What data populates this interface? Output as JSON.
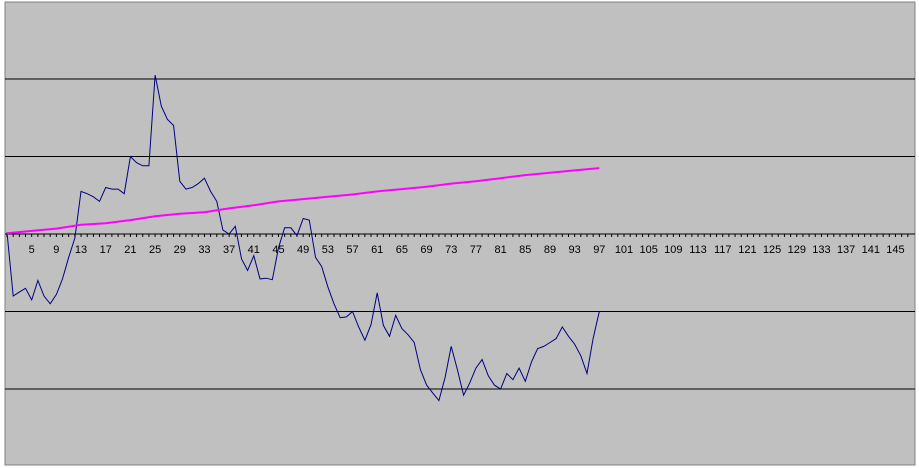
{
  "chart_data": {
    "type": "line",
    "title": "",
    "xlabel": "",
    "ylabel": "",
    "x_tick_labels": [
      "5",
      "9",
      "13",
      "17",
      "21",
      "25",
      "29",
      "33",
      "37",
      "41",
      "45",
      "49",
      "53",
      "57",
      "61",
      "65",
      "69",
      "73",
      "77",
      "81",
      "85",
      "89",
      "93",
      "97",
      "101",
      "105",
      "109",
      "113",
      "117",
      "121",
      "125",
      "129",
      "133",
      "137",
      "141",
      "145"
    ],
    "x_range": [
      1,
      147
    ],
    "y_range": [
      -3,
      3
    ],
    "y_gridlines": [
      -2,
      -1,
      1,
      2
    ],
    "grid": true,
    "background_color": "#C0C0C0",
    "series": [
      {
        "color": "#000080",
        "x": [
          1,
          2,
          3,
          4,
          5,
          6,
          7,
          8,
          9,
          10,
          11,
          12,
          13,
          14,
          15,
          16,
          17,
          18,
          19,
          20,
          21,
          22,
          23,
          24,
          25,
          26,
          27,
          28,
          29,
          30,
          31,
          32,
          33,
          34,
          35,
          36,
          37,
          38,
          39,
          40,
          41,
          42,
          43,
          44,
          45,
          46,
          47,
          48,
          49,
          50,
          51,
          52,
          53,
          54,
          55,
          56,
          57,
          58,
          59,
          60,
          61,
          62,
          63,
          64,
          65,
          66,
          67,
          68,
          69,
          70,
          71,
          72,
          73,
          74,
          75,
          76,
          77,
          78,
          79,
          80,
          81,
          82,
          83,
          84,
          85,
          86,
          87,
          88,
          89,
          90,
          91,
          92,
          93,
          94,
          95,
          96,
          97
        ],
        "y": [
          0.02,
          -0.8,
          -0.75,
          -0.7,
          -0.85,
          -0.6,
          -0.8,
          -0.9,
          -0.78,
          -0.58,
          -0.3,
          -0.05,
          0.55,
          0.52,
          0.48,
          0.42,
          0.6,
          0.58,
          0.58,
          0.52,
          1.0,
          0.92,
          0.88,
          0.88,
          2.05,
          1.65,
          1.48,
          1.4,
          0.68,
          0.58,
          0.6,
          0.65,
          0.72,
          0.55,
          0.42,
          0.05,
          0.0,
          0.1,
          -0.32,
          -0.47,
          -0.28,
          -0.58,
          -0.57,
          -0.59,
          -0.18,
          0.08,
          0.08,
          -0.02,
          0.2,
          0.18,
          -0.3,
          -0.42,
          -0.68,
          -0.9,
          -1.08,
          -1.07,
          -1.0,
          -1.2,
          -1.37,
          -1.17,
          -0.76,
          -1.18,
          -1.32,
          -1.05,
          -1.22,
          -1.3,
          -1.4,
          -1.75,
          -1.95,
          -2.05,
          -2.15,
          -1.85,
          -1.45,
          -1.75,
          -2.08,
          -1.92,
          -1.73,
          -1.62,
          -1.83,
          -1.95,
          -2.0,
          -1.8,
          -1.88,
          -1.73,
          -1.9,
          -1.65,
          -1.48,
          -1.45,
          -1.4,
          -1.35,
          -1.2,
          -1.32,
          -1.42,
          -1.57,
          -1.8,
          -1.35,
          -1.0
        ]
      },
      {
        "color": "#FF00FF",
        "x": [
          1,
          5,
          9,
          13,
          17,
          21,
          25,
          29,
          33,
          37,
          41,
          45,
          49,
          53,
          57,
          61,
          65,
          69,
          73,
          77,
          81,
          85,
          89,
          93,
          97
        ],
        "y": [
          0.01,
          0.04,
          0.07,
          0.12,
          0.14,
          0.18,
          0.23,
          0.26,
          0.28,
          0.33,
          0.37,
          0.42,
          0.45,
          0.48,
          0.51,
          0.55,
          0.58,
          0.61,
          0.65,
          0.68,
          0.72,
          0.76,
          0.79,
          0.82,
          0.85
        ]
      }
    ]
  }
}
